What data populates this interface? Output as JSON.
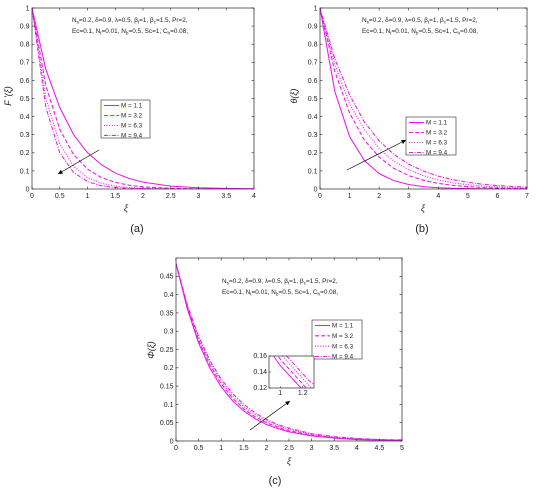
{
  "figure": {
    "colors": {
      "series": "#e619e6",
      "axis": "#262626",
      "arrow": "#000000"
    },
    "panels": [
      "a",
      "b",
      "c"
    ]
  },
  "chart_data": [
    {
      "id": "a",
      "type": "line",
      "caption": "(a)",
      "xlabel": "ξ",
      "ylabel": "F '(ξ)",
      "xlim": [
        0,
        4
      ],
      "ylim": [
        0,
        1
      ],
      "xticks": [
        "0",
        "0.5",
        "1",
        "1.5",
        "2",
        "2.5",
        "3",
        "3.5",
        "4"
      ],
      "yticks": [
        "0",
        "0.1",
        "0.2",
        "0.3",
        "0.4",
        "0.5",
        "0.6",
        "0.7",
        "0.8",
        "0.9",
        "1"
      ],
      "grid": false,
      "legend": "center",
      "annotation": [
        "N_s=0.2, δ=0.9, λ=0.5, β_t=1, β_c=1.5, Pr=2,",
        "Ec=0.1, N_t=0.01, N_b=0.5, Sc=1, C_h=0.08,"
      ],
      "arrow": "decreasing M",
      "x": [
        0,
        0.25,
        0.5,
        0.75,
        1,
        1.25,
        1.5,
        1.75,
        2,
        2.5,
        3,
        3.5,
        4
      ],
      "series": [
        {
          "name": "M = 1.1",
          "style": "solid",
          "values": [
            1,
            0.66,
            0.45,
            0.3,
            0.2,
            0.134,
            0.088,
            0.058,
            0.038,
            0.016,
            0.007,
            0.003,
            0.001
          ]
        },
        {
          "name": "M = 3.2",
          "style": "dashed",
          "values": [
            1,
            0.57,
            0.33,
            0.19,
            0.11,
            0.063,
            0.037,
            0.021,
            0.012,
            0.004,
            0.001,
            0.0005,
            0
          ]
        },
        {
          "name": "M = 6.3",
          "style": "dotted",
          "values": [
            1,
            0.5,
            0.25,
            0.125,
            0.063,
            0.032,
            0.016,
            0.008,
            0.004,
            0.001,
            0,
            0,
            0
          ]
        },
        {
          "name": "M = 9.4",
          "style": "dashdot",
          "values": [
            1,
            0.45,
            0.2,
            0.091,
            0.041,
            0.018,
            0.008,
            0.004,
            0.002,
            0,
            0,
            0,
            0
          ]
        }
      ]
    },
    {
      "id": "b",
      "type": "line",
      "caption": "(b)",
      "xlabel": "ξ",
      "ylabel": "θ(ξ)",
      "xlim": [
        0,
        7
      ],
      "ylim": [
        0,
        1
      ],
      "xticks": [
        "0",
        "1",
        "2",
        "3",
        "4",
        "5",
        "6",
        "7"
      ],
      "yticks": [
        "0",
        "0.1",
        "0.2",
        "0.3",
        "0.4",
        "0.5",
        "0.6",
        "0.7",
        "0.8",
        "0.9",
        "1"
      ],
      "grid": false,
      "legend": "center-right",
      "annotation": [
        "N_s=0.2, δ=0.9, λ=0.5, β_t=1, β_c=1.5, Pr=2,",
        "Ec=0.1, N_t=0.01, N_b=0.5, Sc=1, C_h=0.08,"
      ],
      "arrow": "increasing M",
      "x": [
        0,
        0.5,
        1,
        1.5,
        2,
        2.5,
        3,
        3.5,
        4,
        4.5,
        5,
        5.5,
        6,
        6.5,
        7
      ],
      "series": [
        {
          "name": "M = 1.1",
          "style": "solid",
          "values": [
            1,
            0.54,
            0.29,
            0.157,
            0.085,
            0.046,
            0.025,
            0.013,
            0.007,
            0.004,
            0.002,
            0.001,
            0,
            0,
            0
          ]
        },
        {
          "name": "M = 3.2",
          "style": "dashed",
          "values": [
            1,
            0.65,
            0.42,
            0.27,
            0.176,
            0.114,
            0.074,
            0.048,
            0.031,
            0.02,
            0.013,
            0.008,
            0.005,
            0.003,
            0.002
          ]
        },
        {
          "name": "M = 6.3",
          "style": "dotted",
          "values": [
            1,
            0.69,
            0.47,
            0.33,
            0.223,
            0.154,
            0.106,
            0.073,
            0.05,
            0.034,
            0.024,
            0.016,
            0.011,
            0.008,
            0.005
          ]
        },
        {
          "name": "M = 9.4",
          "style": "dashdot",
          "values": [
            1,
            0.72,
            0.52,
            0.37,
            0.266,
            0.191,
            0.137,
            0.099,
            0.071,
            0.051,
            0.037,
            0.026,
            0.019,
            0.014,
            0.01
          ]
        }
      ]
    },
    {
      "id": "c",
      "type": "line",
      "caption": "(c)",
      "xlabel": "ξ",
      "ylabel": "Φ(ξ)",
      "xlim": [
        0,
        5
      ],
      "ylim": [
        0,
        0.5
      ],
      "xticks": [
        "0",
        "0.5",
        "1",
        "1.5",
        "2",
        "2.5",
        "3",
        "3.5",
        "4",
        "4.5",
        "5"
      ],
      "yticks": [
        "0",
        "0.05",
        "0.1",
        "0.15",
        "0.2",
        "0.25",
        "0.3",
        "0.35",
        "0.4",
        "0.45"
      ],
      "grid": false,
      "legend": "top-right",
      "annotation": [
        "N_s=0.2, δ=0.9, λ=0.5, β_t=1, β_c=1.5, Pr=2,",
        "Ec=0.1, N_t=0.01, N_b=0.5, Sc=1, C_h=0.08,"
      ],
      "arrow": "increasing M",
      "x": [
        0,
        0.25,
        0.5,
        0.75,
        1,
        1.25,
        1.5,
        1.75,
        2,
        2.25,
        2.5,
        3,
        3.5,
        4,
        4.5,
        5
      ],
      "series": [
        {
          "name": "M = 1.1",
          "style": "solid",
          "values": [
            0.485,
            0.361,
            0.268,
            0.199,
            0.148,
            0.11,
            0.082,
            0.061,
            0.045,
            0.034,
            0.025,
            0.014,
            0.008,
            0.004,
            0.002,
            0.001
          ]
        },
        {
          "name": "M = 3.2",
          "style": "dashed",
          "values": [
            0.485,
            0.365,
            0.275,
            0.207,
            0.156,
            0.117,
            0.088,
            0.066,
            0.05,
            0.038,
            0.028,
            0.016,
            0.009,
            0.005,
            0.003,
            0.002
          ]
        },
        {
          "name": "M = 6.3",
          "style": "dotted",
          "values": [
            0.485,
            0.369,
            0.281,
            0.214,
            0.163,
            0.124,
            0.094,
            0.072,
            0.055,
            0.042,
            0.032,
            0.018,
            0.01,
            0.006,
            0.004,
            0.002
          ]
        },
        {
          "name": "M = 9.4",
          "style": "dashdot",
          "values": [
            0.485,
            0.372,
            0.286,
            0.22,
            0.169,
            0.13,
            0.1,
            0.077,
            0.059,
            0.045,
            0.035,
            0.02,
            0.012,
            0.007,
            0.004,
            0.003
          ]
        }
      ],
      "inset": {
        "xlim": [
          0.9,
          1.3
        ],
        "ylim": [
          0.12,
          0.16
        ],
        "xticks": [
          "1",
          "1.2"
        ],
        "yticks": [
          "0.12",
          "0.14",
          "0.16"
        ]
      }
    }
  ]
}
